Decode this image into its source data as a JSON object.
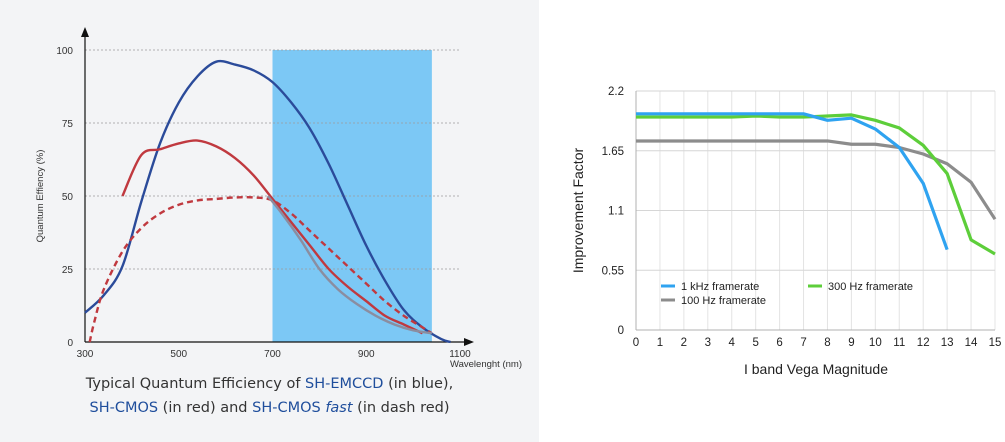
{
  "chart_data": [
    {
      "type": "line",
      "xlabel": "Wavelenght (nm)",
      "ylabel": "Quantum Effiency (%)",
      "xlim": [
        300,
        1100
      ],
      "ylim": [
        0,
        100
      ],
      "x_ticks": [
        "300",
        "500",
        "700",
        "900",
        "1100"
      ],
      "y_ticks": [
        "0",
        "25",
        "50",
        "75",
        "100"
      ],
      "highlight_band": {
        "x_start": 700,
        "x_end": 1040,
        "color": "#7cc8f5"
      },
      "series": [
        {
          "color": "#2b4b9a",
          "style": "solid",
          "x": [
            300,
            340,
            380,
            420,
            460,
            500,
            540,
            580,
            620,
            660,
            700,
            740,
            780,
            820,
            860,
            900,
            940,
            980,
            1020,
            1060,
            1080
          ],
          "y": [
            10,
            16,
            26,
            48,
            68,
            82,
            91,
            96,
            95,
            93,
            89,
            82,
            73,
            61,
            47,
            33,
            21,
            11,
            5,
            1,
            0
          ]
        },
        {
          "color": "#c0393f",
          "style": "solid",
          "x": [
            380,
            420,
            460,
            500,
            540,
            580,
            620,
            660,
            700,
            740,
            780,
            820,
            860,
            900,
            940,
            980,
            1020
          ],
          "y": [
            50,
            64,
            66,
            68,
            69,
            67,
            63,
            57,
            49,
            41,
            33,
            25,
            19,
            14,
            9,
            6,
            3
          ]
        },
        {
          "color": "#c0393f",
          "style": "dash",
          "x": [
            310,
            320,
            340,
            380,
            420,
            460,
            500,
            540,
            580,
            620,
            660,
            700,
            740,
            780,
            820,
            860,
            900,
            940,
            980,
            1020,
            1040
          ],
          "y": [
            0,
            7,
            18,
            31,
            39,
            44,
            47,
            48.5,
            49,
            49.5,
            49.5,
            48.5,
            44,
            38,
            32,
            26,
            20,
            14,
            9,
            5,
            3
          ]
        },
        {
          "color": "#8b8da0",
          "style": "solid",
          "x": [
            690,
            720,
            760,
            800,
            840,
            880,
            920,
            960,
            1000,
            1040
          ],
          "y": [
            50,
            44,
            35,
            25,
            18,
            13,
            9,
            6,
            4,
            3
          ]
        }
      ],
      "caption": {
        "line1_pre": "Typical Quantum Efficiency of ",
        "line1_hl": "SH-EMCCD",
        "line1_post": " (in blue),",
        "line2_hl1": "SH-CMOS",
        "line2_mid": " (in red) and ",
        "line2_hl2": "SH-CMOS ",
        "line2_hl2_italic": "fast",
        "line2_post": " (in dash red)"
      }
    },
    {
      "type": "line",
      "xlabel": "I band Vega Magnitude",
      "ylabel": "Improvement Factor",
      "xlim": [
        0,
        15
      ],
      "ylim": [
        0,
        2.2
      ],
      "x_ticks": [
        "0",
        "1",
        "2",
        "3",
        "4",
        "5",
        "6",
        "7",
        "8",
        "9",
        "10",
        "11",
        "12",
        "13",
        "14",
        "15"
      ],
      "y_ticks": [
        "0",
        "0.55",
        "1.1",
        "1.65",
        "2.2"
      ],
      "grid": "horizontal and vertical",
      "series": [
        {
          "name": "1 kHz framerate",
          "color": "#2fa3f0",
          "x": [
            0,
            1,
            2,
            3,
            4,
            5,
            6,
            7,
            8,
            9,
            10,
            11,
            12,
            13
          ],
          "y": [
            1.99,
            1.99,
            1.99,
            1.99,
            1.99,
            1.99,
            1.99,
            1.99,
            1.93,
            1.95,
            1.85,
            1.68,
            1.35,
            0.74
          ]
        },
        {
          "name": "300 Hz framerate",
          "color": "#5dce3a",
          "x": [
            0,
            1,
            2,
            3,
            4,
            5,
            6,
            7,
            8,
            9,
            10,
            11,
            12,
            13,
            14,
            15
          ],
          "y": [
            1.96,
            1.96,
            1.96,
            1.96,
            1.96,
            1.97,
            1.96,
            1.96,
            1.97,
            1.98,
            1.93,
            1.86,
            1.7,
            1.44,
            0.83,
            0.7
          ]
        },
        {
          "name": "100 Hz framerate",
          "color": "#8c8c8c",
          "x": [
            0,
            1,
            2,
            3,
            4,
            5,
            6,
            7,
            8,
            9,
            10,
            11,
            12,
            13,
            14,
            15
          ],
          "y": [
            1.74,
            1.74,
            1.74,
            1.74,
            1.74,
            1.74,
            1.74,
            1.74,
            1.74,
            1.71,
            1.71,
            1.68,
            1.62,
            1.53,
            1.36,
            1.02
          ]
        }
      ],
      "legend": "inside bottom-left"
    }
  ]
}
